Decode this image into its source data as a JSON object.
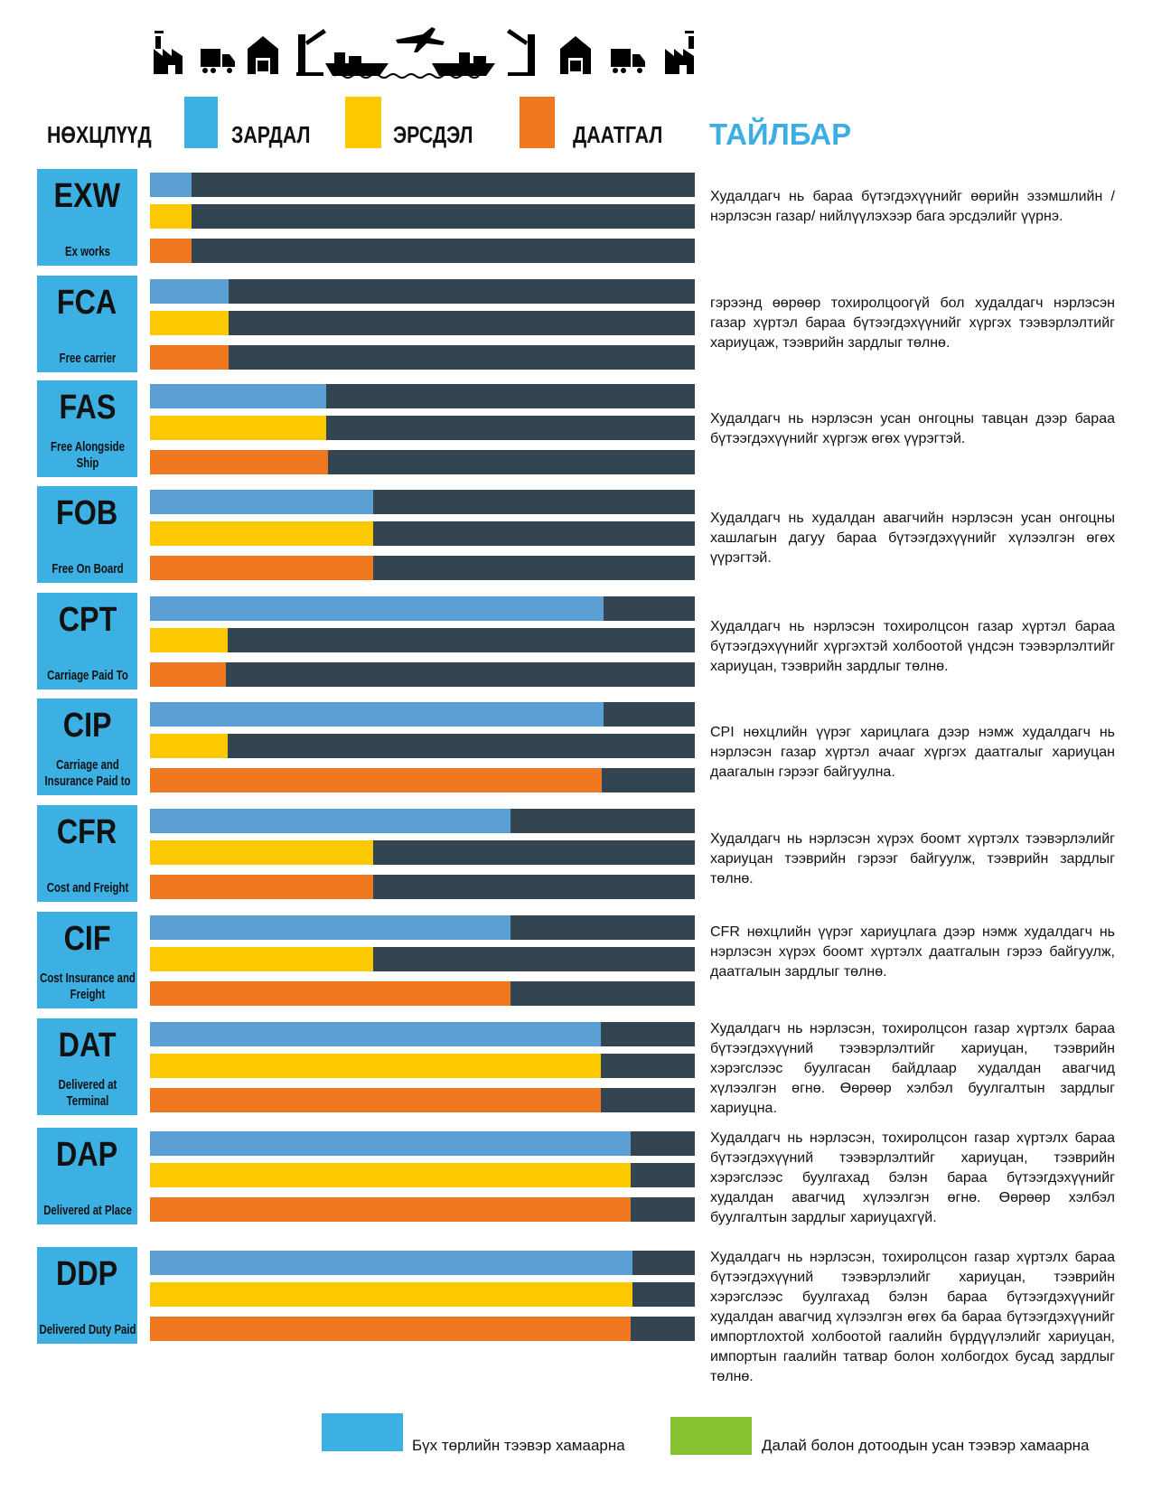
{
  "header": {
    "terms_label": "НӨХЦЛҮҮД",
    "cost_label": "ЗАРДАЛ",
    "risk_label": "ЭРСДЭЛ",
    "insurance_label": "ДААТГАЛ",
    "description_label": "ТАЙЛБАР"
  },
  "colors": {
    "box": "#3db0e3",
    "cost": "#5b9fd4",
    "risk": "#fcc800",
    "insurance": "#ef771f",
    "remaining": "#344552",
    "all_transport": "#3db0e3",
    "sea_transport": "#84c232",
    "title_accent": "#3daee3"
  },
  "icons": [
    "factory-icon",
    "truck-icon",
    "warehouse-icon",
    "crane-icon",
    "ship-icon",
    "airplane-icon",
    "ship-icon",
    "crane-icon",
    "warehouse-icon",
    "truck-icon",
    "factory-icon"
  ],
  "terms": [
    {
      "code": "EXW",
      "name": "Ex works",
      "cost": 0.076,
      "risk": 0.076,
      "insurance": 0.076,
      "description": "Худалдагч нь бараа бүтэгдэхүүнийг өөрийн эзэмшлийн /нэрлэсэн газар/ нийлүүлэхээр бага эрсдэлийг үүрнэ."
    },
    {
      "code": "FCA",
      "name": "Free carrier",
      "cost": 0.144,
      "risk": 0.144,
      "insurance": 0.144,
      "description": "гэрээнд өөрөөр тохиролцоогүй бол худалдагч нэрлэсэн газар хүртэл бараа бүтээгдэхүүнийг хүргэх тээвэрлэлтийг хариуцаж, тээврийн зардлыг төлнө."
    },
    {
      "code": "FAS",
      "name": "Free Alongside Ship",
      "cost": 0.323,
      "risk": 0.323,
      "insurance": 0.326,
      "description": "Худалдагч нь нэрлэсэн усан онгоцны тавцан дээр бараа бүтээгдэхүүнийг хүргэж өгөх үүрэгтэй."
    },
    {
      "code": "FOB",
      "name": "Free On Board",
      "cost": 0.41,
      "risk": 0.41,
      "insurance": 0.41,
      "description": "Худалдагч нь худалдан авагчийн нэрлэсэн усан онгоцны хашлагын дагуу бараа бүтээгдэхүүнийг хүлээлгэн өгөх үүрэгтэй."
    },
    {
      "code": "CPT",
      "name": "Carriage Paid To",
      "cost": 0.832,
      "risk": 0.142,
      "insurance": 0.14,
      "description": "Худалдагч нь нэрлэсэн тохиролцсон газар хүртэл бараа бүтээгдэхүүнийг хүргэхтэй холбоотой үндсэн тээвэрлэлтийг хариуцан, тээврийн зардлыг төлнө."
    },
    {
      "code": "CIP",
      "name": "Carriage and Insurance Paid to",
      "cost": 0.832,
      "risk": 0.142,
      "insurance": 0.83,
      "description": "CPI нөхцлийн үүрэг харицлага дээр нэмж худалдагч нь нэрлэсэн газар хүртэл ачааг хүргэх даатгалыг хариуцан даагалын гэрээг байгуулна."
    },
    {
      "code": "CFR",
      "name": "Cost and Freight",
      "cost": 0.662,
      "risk": 0.41,
      "insurance": 0.41,
      "description": "Худалдагч нь нэрлэсэн хүрэх боомт хүртэлх тээвэрлэлийг хариуцан тээврийн гэрээг байгуулж, тээврийн зардлыг төлнө."
    },
    {
      "code": "CIF",
      "name": "Cost Insurance and Freight",
      "cost": 0.662,
      "risk": 0.41,
      "insurance": 0.662,
      "description": "CFR нөхцлийн үүрэг хариуцлага дээр нэмж худалдагч нь нэрлэсэн хүрэх боомт хүртэлх даатгалын гэрээ байгуулж, даатгалын зардлыг төлнө."
    },
    {
      "code": "DAT",
      "name": "Delivered at Terminal",
      "cost": 0.828,
      "risk": 0.828,
      "insurance": 0.828,
      "description": "Худалдагч нь нэрлэсэн, тохиролцсон газар хүртэлх бараа бүтээгдэхүүний тээвэрлэлтийг хариуцан, тээврийн хэрэгслээс буулгасан байдлаар худалдан авагчид хүлээлгэн өгнө. Өөрөөр хэлбэл буулгалтын зардлыг хариуцна."
    },
    {
      "code": "DAP",
      "name": "Delivered at Place",
      "cost": 0.882,
      "risk": 0.882,
      "insurance": 0.882,
      "description": "Худалдагч нь нэрлэсэн, тохиролцсон газар хүртэлх бараа бүтээгдэхүүний тээвэрлэлтийг хариуцан, тээврийн хэрэгслээс буулгахад бэлэн бараа бүтээгдэхүүнийг худалдан авагчид хүлээлгэн өгнө. Өөрөөр хэлбэл буулгалтын зардлыг хариуцахгүй."
    },
    {
      "code": "DDP",
      "name": "Delivered Duty Paid",
      "cost": 0.885,
      "risk": 0.885,
      "insurance": 0.882,
      "description": "Худалдагч нь нэрлэсэн, тохиролцсон газар хүртэлх бараа бүтээгдэхүүний тээвэрлэлийг хариуцан, тээврийн хэрэгслээс буулгахад бэлэн бараа бүтээгдэхүүнийг худалдан авагчид хүлээлгэн өгөх ба бараа бүтээгдэхүүнийг импортлохтой холбоотой гаалийн бүрдүүлэлийг хариуцан, импортын гаалийн татвар болон холбогдох бусад зардлыг төлнө."
    }
  ],
  "footer_legend": {
    "all_transport": "Бүх төрлийн тээвэр хамаарна",
    "sea_transport": "Далай болон дотоодын усан тээвэр хамаарна"
  }
}
